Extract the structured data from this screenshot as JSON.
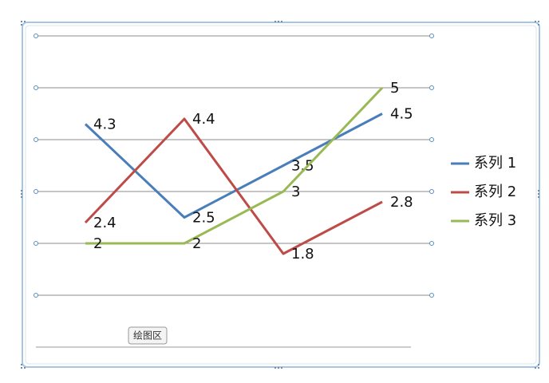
{
  "chart_data": {
    "type": "line",
    "categories": [
      null,
      null,
      null,
      null
    ],
    "series": [
      {
        "name": "系列 1",
        "color": "#4a7ebb",
        "values": [
          4.3,
          2.5,
          3.5,
          4.5
        ]
      },
      {
        "name": "系列 2",
        "color": "#be4b48",
        "values": [
          2.4,
          4.4,
          1.8,
          2.8
        ]
      },
      {
        "name": "系列 3",
        "color": "#98b954",
        "values": [
          2,
          2,
          3,
          5
        ]
      }
    ],
    "ylim": [
      0,
      6
    ],
    "yticks": [
      0,
      1,
      2,
      3,
      4,
      5,
      6
    ],
    "grid": true,
    "legend": "right",
    "annotation": "绘图区"
  }
}
